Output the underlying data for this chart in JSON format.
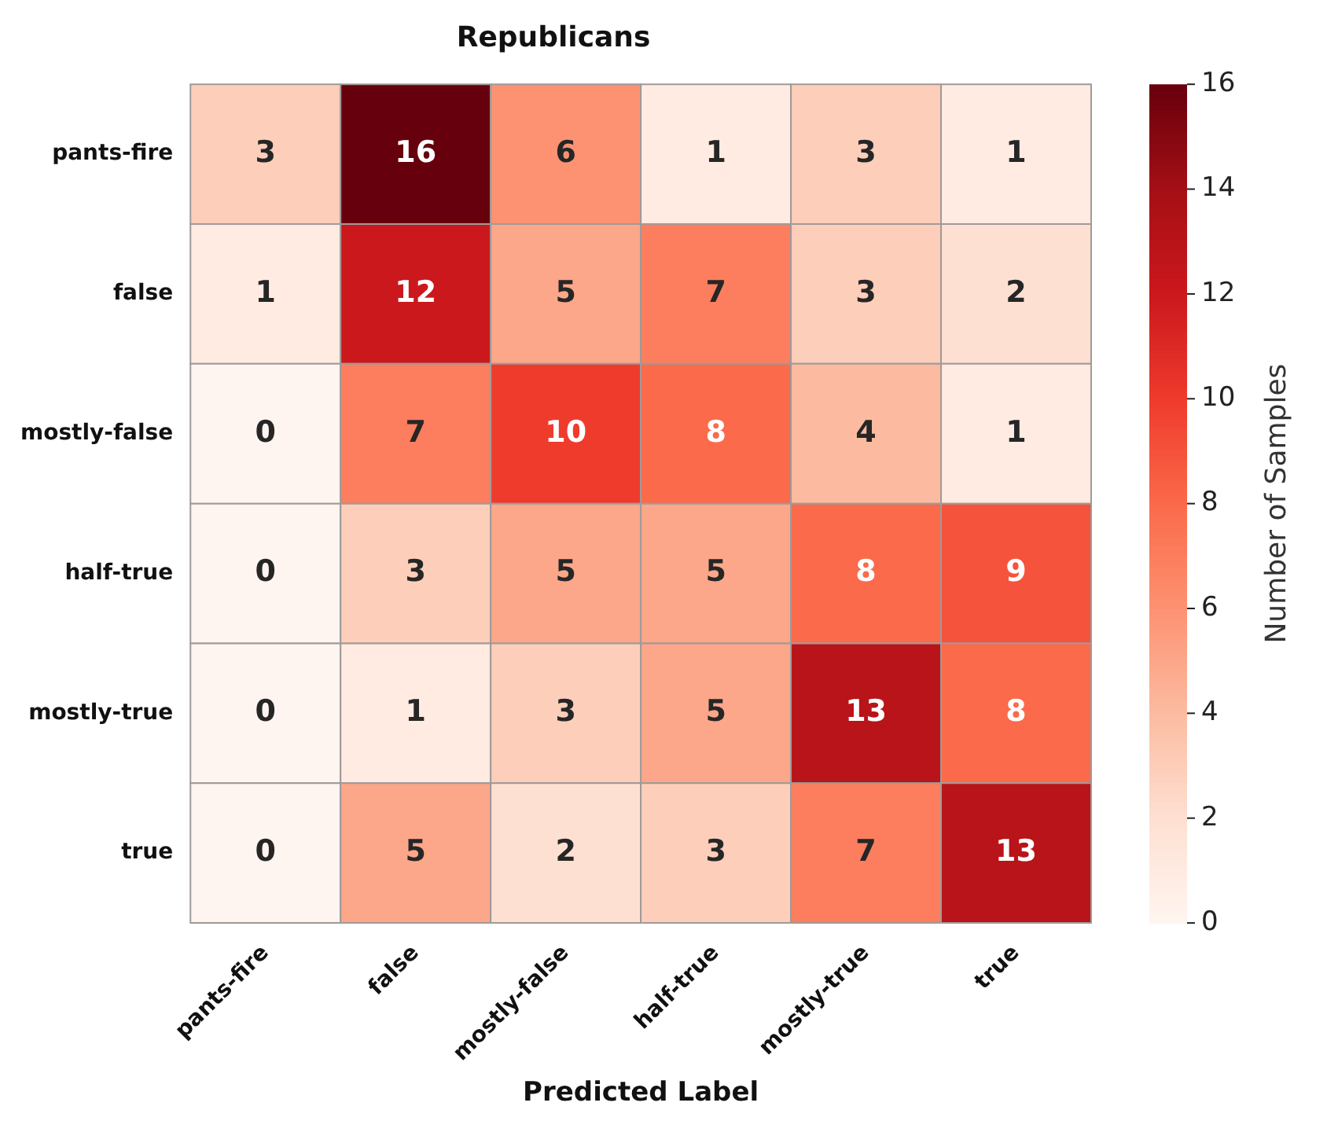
{
  "chart_data": {
    "type": "heatmap",
    "title": "Republicans",
    "xlabel": "Predicted Label",
    "clabel": "Number of Samples",
    "categories": [
      "pants-fire",
      "false",
      "mostly-false",
      "half-true",
      "mostly-true",
      "true"
    ],
    "y_categories": [
      "pants-fire",
      "false",
      "mostly-false",
      "half-true",
      "mostly-true",
      "true"
    ],
    "cells": [
      [
        3,
        16,
        6,
        1,
        3,
        1
      ],
      [
        1,
        12,
        5,
        7,
        3,
        2
      ],
      [
        0,
        7,
        10,
        8,
        4,
        1
      ],
      [
        0,
        3,
        5,
        5,
        8,
        9
      ],
      [
        0,
        1,
        3,
        5,
        13,
        8
      ],
      [
        0,
        5,
        2,
        3,
        7,
        13
      ]
    ],
    "clim": [
      0,
      16
    ],
    "cticks": [
      0,
      2,
      4,
      6,
      8,
      10,
      12,
      14,
      16
    ],
    "data_labels": true
  }
}
